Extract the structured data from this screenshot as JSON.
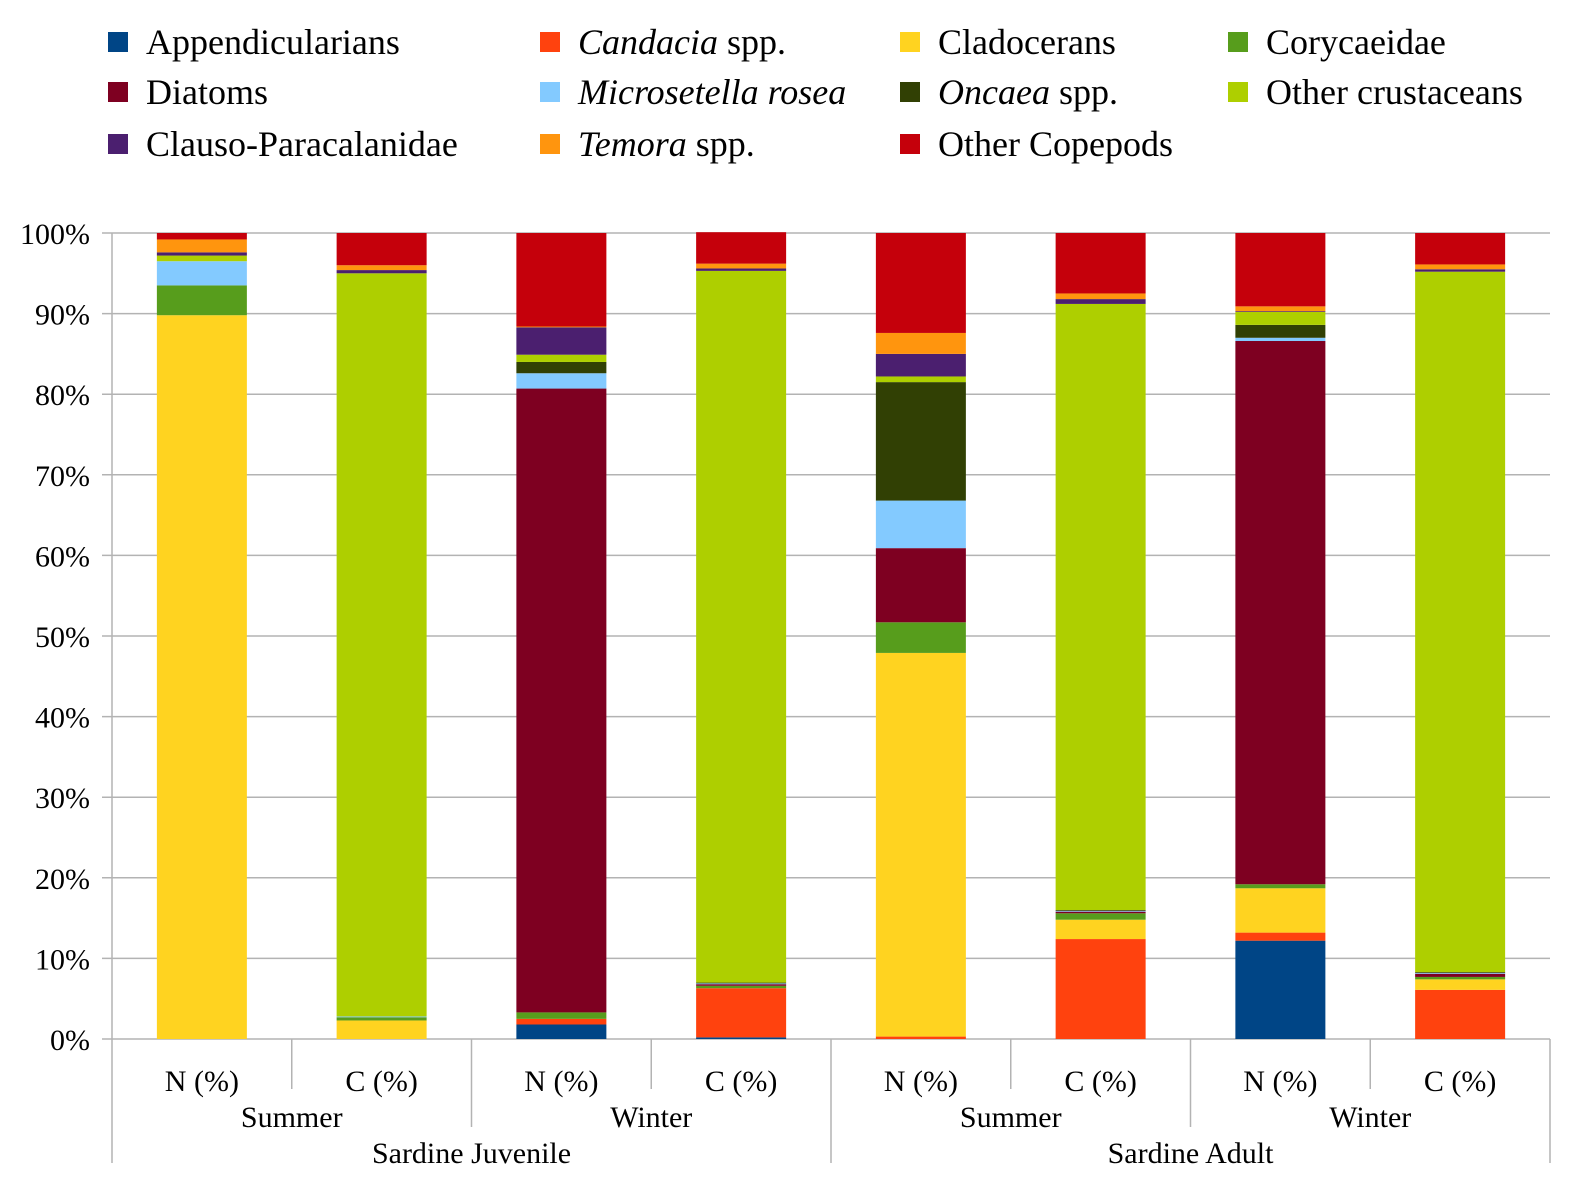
{
  "legend": [
    {
      "series": "Appendicularians",
      "italic": "",
      "rest": "Appendicularians",
      "color": "#004586"
    },
    {
      "series": "Candacia spp.",
      "italic": "Candacia",
      "rest": " spp.",
      "color": "#ff420e"
    },
    {
      "series": "Cladocerans",
      "italic": "",
      "rest": "Cladocerans",
      "color": "#ffd320"
    },
    {
      "series": "Corycaeidae",
      "italic": "",
      "rest": "Corycaeidae",
      "color": "#579d1c"
    },
    {
      "series": "Diatoms",
      "italic": "",
      "rest": "Diatoms",
      "color": "#7e0021"
    },
    {
      "series": "Microsetella rosea",
      "italic": "Microsetella rosea",
      "rest": "",
      "color": "#83caff"
    },
    {
      "series": "Oncaea spp.",
      "italic": "Oncaea",
      "rest": " spp.",
      "color": "#314004"
    },
    {
      "series": "Other crustaceans",
      "italic": "",
      "rest": "Other crustaceans",
      "color": "#aecf00"
    },
    {
      "series": "Clauso-Paracalanidae",
      "italic": "",
      "rest": "Clauso-Paracalanidae",
      "color": "#4b1f6f"
    },
    {
      "series": "Temora spp.",
      "italic": "Temora",
      "rest": " spp.",
      "color": "#ff950e"
    },
    {
      "series": "Other Copepods",
      "italic": "",
      "rest": "Other Copepods",
      "color": "#c5000b"
    }
  ],
  "chart_data": {
    "type": "bar",
    "stacked": "percent",
    "categories": [
      "N (%)",
      "C (%)",
      "N (%)",
      "C (%)",
      "N (%)",
      "C (%)",
      "N (%)",
      "C (%)"
    ],
    "season_labels": [
      "Summer",
      "Winter",
      "Summer",
      "Winter"
    ],
    "group_labels": [
      "Sardine Juvenile",
      "Sardine Adult"
    ],
    "yticks": [
      "0%",
      "10%",
      "20%",
      "30%",
      "40%",
      "50%",
      "60%",
      "70%",
      "80%",
      "90%",
      "100%"
    ],
    "ylim": [
      0,
      100
    ],
    "grid": true,
    "legend_position": "top",
    "series": [
      {
        "name": "Appendicularians",
        "color": "#004586",
        "values": [
          0,
          0,
          1.8,
          0.2,
          0,
          0,
          12.2,
          0
        ]
      },
      {
        "name": "Candacia spp.",
        "color": "#ff420e",
        "values": [
          0,
          0,
          0.7,
          6.1,
          0.3,
          12.4,
          1.0,
          6.1
        ]
      },
      {
        "name": "Cladocerans",
        "color": "#ffd320",
        "values": [
          89.8,
          2.3,
          0,
          0,
          47.6,
          2.4,
          5.5,
          1.3
        ]
      },
      {
        "name": "Corycaeidae",
        "color": "#579d1c",
        "values": [
          3.7,
          0.4,
          0.8,
          0.3,
          3.8,
          0.8,
          0.5,
          0.3
        ]
      },
      {
        "name": "Diatoms",
        "color": "#7e0021",
        "values": [
          0,
          0,
          77.4,
          0.2,
          9.2,
          0.2,
          67.4,
          0.4
        ]
      },
      {
        "name": "Microsetella rosea",
        "color": "#83caff",
        "values": [
          3.0,
          0.1,
          1.9,
          0.1,
          5.9,
          0.1,
          0.4,
          0.1
        ]
      },
      {
        "name": "Oncaea spp.",
        "color": "#314004",
        "values": [
          0,
          0,
          1.4,
          0.1,
          14.7,
          0.1,
          1.6,
          0.1
        ]
      },
      {
        "name": "Other crustaceans",
        "color": "#aecf00",
        "values": [
          0.7,
          92.2,
          0.9,
          88.3,
          0.7,
          75.2,
          1.6,
          86.9
        ]
      },
      {
        "name": "Clauso-Paracalanidae",
        "color": "#4b1f6f",
        "values": [
          0.4,
          0.4,
          3.4,
          0.3,
          2.8,
          0.6,
          0.1,
          0.3
        ]
      },
      {
        "name": "Temora spp.",
        "color": "#ff950e",
        "values": [
          1.6,
          0.6,
          0.1,
          0.6,
          2.6,
          0.7,
          0.6,
          0.6
        ]
      },
      {
        "name": "Other Copepods",
        "color": "#c5000b",
        "values": [
          0.8,
          4.0,
          11.6,
          3.9,
          12.4,
          7.5,
          9.1,
          3.9
        ]
      }
    ]
  }
}
